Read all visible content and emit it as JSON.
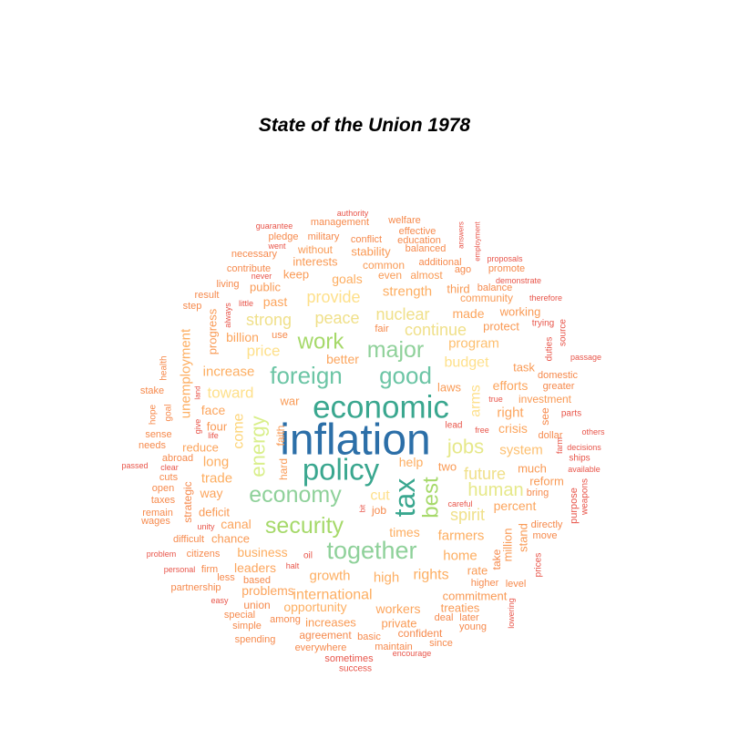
{
  "chart_data": {
    "type": "wordcloud",
    "title": "State of the Union 1978",
    "palette": [
      "#2c7bb6",
      "#3aa78f",
      "#6cc5a5",
      "#a6d96a",
      "#d9ef8b",
      "#fee08b",
      "#fdae61",
      "#f46d43",
      "#d73027"
    ],
    "words": [
      {
        "text": "inflation",
        "freq": 35,
        "color": "#2c6fa8"
      },
      {
        "text": "economic",
        "freq": 25,
        "color": "#3aa78f"
      },
      {
        "text": "policy",
        "freq": 22,
        "color": "#3aa78f"
      },
      {
        "text": "tax",
        "freq": 21,
        "color": "#3aa78f"
      },
      {
        "text": "foreign",
        "freq": 18,
        "color": "#6cc5a5"
      },
      {
        "text": "good",
        "freq": 18,
        "color": "#6cc5a5"
      },
      {
        "text": "together",
        "freq": 18,
        "color": "#8fd19a"
      },
      {
        "text": "major",
        "freq": 17,
        "color": "#8fd19a"
      },
      {
        "text": "economy",
        "freq": 17,
        "color": "#8fd19a"
      },
      {
        "text": "security",
        "freq": 17,
        "color": "#a6d96a"
      },
      {
        "text": "work",
        "freq": 16,
        "color": "#a6d96a"
      },
      {
        "text": "best",
        "freq": 16,
        "color": "#a6d96a"
      },
      {
        "text": "energy",
        "freq": 15,
        "color": "#d9ef8b"
      },
      {
        "text": "jobs",
        "freq": 15,
        "color": "#e6e88a"
      },
      {
        "text": "human",
        "freq": 14,
        "color": "#e6e88a"
      },
      {
        "text": "spirit",
        "freq": 12,
        "color": "#f0e08a"
      },
      {
        "text": "future",
        "freq": 12,
        "color": "#f0e08a"
      },
      {
        "text": "continue",
        "freq": 12,
        "color": "#f0e08a"
      },
      {
        "text": "nuclear",
        "freq": 12,
        "color": "#f0e08a"
      },
      {
        "text": "strong",
        "freq": 12,
        "color": "#f0e08a"
      },
      {
        "text": "peace",
        "freq": 12,
        "color": "#f0e08a"
      },
      {
        "text": "provide",
        "freq": 12,
        "color": "#fee08b"
      },
      {
        "text": "arms",
        "freq": 11,
        "color": "#fee08b"
      },
      {
        "text": "budget",
        "freq": 11,
        "color": "#fee08b"
      },
      {
        "text": "cut",
        "freq": 11,
        "color": "#fee08b"
      },
      {
        "text": "price",
        "freq": 11,
        "color": "#fee08b"
      },
      {
        "text": "toward",
        "freq": 11,
        "color": "#fee08b"
      },
      {
        "text": "come",
        "freq": 11,
        "color": "#fdd57a"
      },
      {
        "text": "program",
        "freq": 10,
        "color": "#fdbf6f"
      },
      {
        "text": "system",
        "freq": 10,
        "color": "#fdbf6f"
      },
      {
        "text": "international",
        "freq": 10,
        "color": "#fdae61"
      },
      {
        "text": "growth",
        "freq": 10,
        "color": "#fdae61"
      },
      {
        "text": "rights",
        "freq": 10,
        "color": "#fdae61"
      },
      {
        "text": "high",
        "freq": 10,
        "color": "#fdae61"
      },
      {
        "text": "opportunity",
        "freq": 10,
        "color": "#fdae61"
      },
      {
        "text": "business",
        "freq": 10,
        "color": "#fdae61"
      },
      {
        "text": "home",
        "freq": 10,
        "color": "#fdae61"
      },
      {
        "text": "farmers",
        "freq": 10,
        "color": "#fdae61"
      },
      {
        "text": "times",
        "freq": 10,
        "color": "#fdae61"
      },
      {
        "text": "help",
        "freq": 10,
        "color": "#fdae61"
      },
      {
        "text": "trade",
        "freq": 10,
        "color": "#fdae61"
      },
      {
        "text": "long",
        "freq": 10,
        "color": "#fdae61"
      },
      {
        "text": "increase",
        "freq": 10,
        "color": "#fdae61"
      },
      {
        "text": "unemployment",
        "freq": 10,
        "color": "#fdae61"
      },
      {
        "text": "strength",
        "freq": 10,
        "color": "#fdae61"
      },
      {
        "text": "goals",
        "freq": 10,
        "color": "#fdae61"
      },
      {
        "text": "leaders",
        "freq": 9,
        "color": "#fca55d"
      },
      {
        "text": "problems",
        "freq": 9,
        "color": "#fca55d"
      },
      {
        "text": "workers",
        "freq": 9,
        "color": "#fca55d"
      },
      {
        "text": "percent",
        "freq": 9,
        "color": "#fca55d"
      },
      {
        "text": "right",
        "freq": 9,
        "color": "#fca55d"
      },
      {
        "text": "efforts",
        "freq": 9,
        "color": "#fca55d"
      },
      {
        "text": "made",
        "freq": 9,
        "color": "#fca55d"
      },
      {
        "text": "better",
        "freq": 9,
        "color": "#fca55d"
      },
      {
        "text": "billion",
        "freq": 9,
        "color": "#fca55d"
      },
      {
        "text": "reduce",
        "freq": 9,
        "color": "#fca55d"
      },
      {
        "text": "face",
        "freq": 9,
        "color": "#fca55d"
      },
      {
        "text": "canal",
        "freq": 9,
        "color": "#fca55d"
      },
      {
        "text": "way",
        "freq": 9,
        "color": "#fca55d"
      },
      {
        "text": "past",
        "freq": 9,
        "color": "#fca55d"
      },
      {
        "text": "crisis",
        "freq": 9,
        "color": "#fca55d"
      },
      {
        "text": "commitment",
        "freq": 8,
        "color": "#f99a55"
      },
      {
        "text": "increases",
        "freq": 8,
        "color": "#f99a55"
      },
      {
        "text": "private",
        "freq": 8,
        "color": "#f99a55"
      },
      {
        "text": "treaties",
        "freq": 8,
        "color": "#f99a55"
      },
      {
        "text": "rate",
        "freq": 8,
        "color": "#f99a55"
      },
      {
        "text": "million",
        "freq": 8,
        "color": "#f99a55"
      },
      {
        "text": "stand",
        "freq": 8,
        "color": "#f99a55"
      },
      {
        "text": "much",
        "freq": 8,
        "color": "#f99a55"
      },
      {
        "text": "reform",
        "freq": 8,
        "color": "#f99a55"
      },
      {
        "text": "working",
        "freq": 8,
        "color": "#f99a55"
      },
      {
        "text": "protect",
        "freq": 8,
        "color": "#f99a55"
      },
      {
        "text": "task",
        "freq": 8,
        "color": "#f99a55"
      },
      {
        "text": "investment",
        "freq": 8,
        "color": "#f99a55"
      },
      {
        "text": "laws",
        "freq": 8,
        "color": "#f99a55"
      },
      {
        "text": "third",
        "freq": 8,
        "color": "#f99a55"
      },
      {
        "text": "community",
        "freq": 8,
        "color": "#f99a55"
      },
      {
        "text": "common",
        "freq": 8,
        "color": "#f99a55"
      },
      {
        "text": "even",
        "freq": 8,
        "color": "#f99a55"
      },
      {
        "text": "almost",
        "freq": 8,
        "color": "#f99a55"
      },
      {
        "text": "stability",
        "freq": 8,
        "color": "#f99a55"
      },
      {
        "text": "interests",
        "freq": 8,
        "color": "#f99a55"
      },
      {
        "text": "without",
        "freq": 8,
        "color": "#f99a55"
      },
      {
        "text": "keep",
        "freq": 8,
        "color": "#f99a55"
      },
      {
        "text": "public",
        "freq": 8,
        "color": "#f99a55"
      },
      {
        "text": "progress",
        "freq": 8,
        "color": "#f99a55"
      },
      {
        "text": "war",
        "freq": 8,
        "color": "#f99a55"
      },
      {
        "text": "four",
        "freq": 8,
        "color": "#f99a55"
      },
      {
        "text": "faith",
        "freq": 8,
        "color": "#f99a55"
      },
      {
        "text": "hard",
        "freq": 8,
        "color": "#f99a55"
      },
      {
        "text": "deficit",
        "freq": 8,
        "color": "#f99a55"
      },
      {
        "text": "chance",
        "freq": 8,
        "color": "#f99a55"
      },
      {
        "text": "two",
        "freq": 8,
        "color": "#f99a55"
      },
      {
        "text": "strategic",
        "freq": 7,
        "color": "#f68a4d"
      },
      {
        "text": "union",
        "freq": 7,
        "color": "#f68a4d"
      },
      {
        "text": "agreement",
        "freq": 7,
        "color": "#f68a4d"
      },
      {
        "text": "basic",
        "freq": 7,
        "color": "#f68a4d"
      },
      {
        "text": "confident",
        "freq": 7,
        "color": "#f68a4d"
      },
      {
        "text": "maintain",
        "freq": 7,
        "color": "#f68a4d"
      },
      {
        "text": "since",
        "freq": 7,
        "color": "#f68a4d"
      },
      {
        "text": "deal",
        "freq": 7,
        "color": "#f68a4d"
      },
      {
        "text": "later",
        "freq": 7,
        "color": "#f68a4d"
      },
      {
        "text": "young",
        "freq": 7,
        "color": "#f68a4d"
      },
      {
        "text": "higher",
        "freq": 7,
        "color": "#f68a4d"
      },
      {
        "text": "level",
        "freq": 7,
        "color": "#f68a4d"
      },
      {
        "text": "take",
        "freq": 7,
        "color": "#f68a4d"
      },
      {
        "text": "move",
        "freq": 7,
        "color": "#f68a4d"
      },
      {
        "text": "directly",
        "freq": 7,
        "color": "#f68a4d"
      },
      {
        "text": "bring",
        "freq": 7,
        "color": "#f68a4d"
      },
      {
        "text": "see",
        "freq": 7,
        "color": "#f68a4d"
      },
      {
        "text": "dollar",
        "freq": 7,
        "color": "#f68a4d"
      },
      {
        "text": "greater",
        "freq": 7,
        "color": "#f68a4d"
      },
      {
        "text": "domestic",
        "freq": 7,
        "color": "#f68a4d"
      },
      {
        "text": "everywhere",
        "freq": 7,
        "color": "#f68a4d"
      },
      {
        "text": "among",
        "freq": 7,
        "color": "#f68a4d"
      },
      {
        "text": "special",
        "freq": 7,
        "color": "#f68a4d"
      },
      {
        "text": "simple",
        "freq": 7,
        "color": "#f68a4d"
      },
      {
        "text": "spending",
        "freq": 7,
        "color": "#f68a4d"
      },
      {
        "text": "partnership",
        "freq": 7,
        "color": "#f68a4d"
      },
      {
        "text": "citizens",
        "freq": 7,
        "color": "#f68a4d"
      },
      {
        "text": "based",
        "freq": 7,
        "color": "#f68a4d"
      },
      {
        "text": "less",
        "freq": 7,
        "color": "#f68a4d"
      },
      {
        "text": "firm",
        "freq": 7,
        "color": "#f68a4d"
      },
      {
        "text": "difficult",
        "freq": 7,
        "color": "#f68a4d"
      },
      {
        "text": "taxes",
        "freq": 7,
        "color": "#f68a4d"
      },
      {
        "text": "open",
        "freq": 7,
        "color": "#f68a4d"
      },
      {
        "text": "remain",
        "freq": 7,
        "color": "#f68a4d"
      },
      {
        "text": "wages",
        "freq": 7,
        "color": "#f68a4d"
      },
      {
        "text": "cuts",
        "freq": 7,
        "color": "#f68a4d"
      },
      {
        "text": "abroad",
        "freq": 7,
        "color": "#f68a4d"
      },
      {
        "text": "needs",
        "freq": 7,
        "color": "#f68a4d"
      },
      {
        "text": "sense",
        "freq": 7,
        "color": "#f68a4d"
      },
      {
        "text": "hope",
        "freq": 7,
        "color": "#f68a4d"
      },
      {
        "text": "goal",
        "freq": 7,
        "color": "#f68a4d"
      },
      {
        "text": "stake",
        "freq": 7,
        "color": "#f68a4d"
      },
      {
        "text": "health",
        "freq": 7,
        "color": "#f68a4d"
      },
      {
        "text": "step",
        "freq": 7,
        "color": "#f68a4d"
      },
      {
        "text": "result",
        "freq": 7,
        "color": "#f68a4d"
      },
      {
        "text": "living",
        "freq": 7,
        "color": "#f68a4d"
      },
      {
        "text": "contribute",
        "freq": 7,
        "color": "#f68a4d"
      },
      {
        "text": "necessary",
        "freq": 7,
        "color": "#f68a4d"
      },
      {
        "text": "pledge",
        "freq": 7,
        "color": "#f68a4d"
      },
      {
        "text": "military",
        "freq": 7,
        "color": "#f68a4d"
      },
      {
        "text": "conflict",
        "freq": 7,
        "color": "#f68a4d"
      },
      {
        "text": "management",
        "freq": 7,
        "color": "#f68a4d"
      },
      {
        "text": "welfare",
        "freq": 7,
        "color": "#f68a4d"
      },
      {
        "text": "effective",
        "freq": 7,
        "color": "#f68a4d"
      },
      {
        "text": "education",
        "freq": 7,
        "color": "#f68a4d"
      },
      {
        "text": "balanced",
        "freq": 7,
        "color": "#f68a4d"
      },
      {
        "text": "additional",
        "freq": 7,
        "color": "#f68a4d"
      },
      {
        "text": "ago",
        "freq": 7,
        "color": "#f68a4d"
      },
      {
        "text": "promote",
        "freq": 7,
        "color": "#f68a4d"
      },
      {
        "text": "balance",
        "freq": 7,
        "color": "#f68a4d"
      },
      {
        "text": "job",
        "freq": 7,
        "color": "#f68a4d"
      },
      {
        "text": "fair",
        "freq": 7,
        "color": "#f68a4d"
      },
      {
        "text": "use",
        "freq": 7,
        "color": "#f68a4d"
      },
      {
        "text": "prices",
        "freq": 6,
        "color": "#e8554a"
      },
      {
        "text": "purpose",
        "freq": 6,
        "color": "#e8554a"
      },
      {
        "text": "weapons",
        "freq": 6,
        "color": "#e8554a"
      },
      {
        "text": "lowering",
        "freq": 6,
        "color": "#e8554a"
      },
      {
        "text": "sometimes",
        "freq": 6,
        "color": "#e8554a"
      },
      {
        "text": "success",
        "freq": 6,
        "color": "#e8554a"
      },
      {
        "text": "encourage",
        "freq": 6,
        "color": "#e8554a"
      },
      {
        "text": "easy",
        "freq": 6,
        "color": "#e8554a"
      },
      {
        "text": "personal",
        "freq": 6,
        "color": "#e8554a"
      },
      {
        "text": "problem",
        "freq": 6,
        "color": "#e8554a"
      },
      {
        "text": "halt",
        "freq": 6,
        "color": "#e8554a"
      },
      {
        "text": "oil",
        "freq": 6,
        "color": "#e8554a"
      },
      {
        "text": "unity",
        "freq": 6,
        "color": "#e8554a"
      },
      {
        "text": "bit",
        "freq": 6,
        "color": "#e8554a"
      },
      {
        "text": "careful",
        "freq": 6,
        "color": "#e8554a"
      },
      {
        "text": "passed",
        "freq": 6,
        "color": "#e8554a"
      },
      {
        "text": "clear",
        "freq": 6,
        "color": "#e8554a"
      },
      {
        "text": "life",
        "freq": 6,
        "color": "#e8554a"
      },
      {
        "text": "give",
        "freq": 6,
        "color": "#e8554a"
      },
      {
        "text": "land",
        "freq": 6,
        "color": "#e8554a"
      },
      {
        "text": "lead",
        "freq": 6,
        "color": "#e8554a"
      },
      {
        "text": "free",
        "freq": 6,
        "color": "#e8554a"
      },
      {
        "text": "true",
        "freq": 6,
        "color": "#e8554a"
      },
      {
        "text": "always",
        "freq": 6,
        "color": "#e8554a"
      },
      {
        "text": "little",
        "freq": 6,
        "color": "#e8554a"
      },
      {
        "text": "never",
        "freq": 6,
        "color": "#e8554a"
      },
      {
        "text": "went",
        "freq": 6,
        "color": "#e8554a"
      },
      {
        "text": "guarantee",
        "freq": 6,
        "color": "#e8554a"
      },
      {
        "text": "authority",
        "freq": 6,
        "color": "#e8554a"
      },
      {
        "text": "answers",
        "freq": 6,
        "color": "#e8554a"
      },
      {
        "text": "employment",
        "freq": 6,
        "color": "#e8554a"
      },
      {
        "text": "proposals",
        "freq": 6,
        "color": "#e8554a"
      },
      {
        "text": "demonstrate",
        "freq": 6,
        "color": "#e8554a"
      },
      {
        "text": "therefore",
        "freq": 6,
        "color": "#e8554a"
      },
      {
        "text": "trying",
        "freq": 6,
        "color": "#e8554a"
      },
      {
        "text": "source",
        "freq": 6,
        "color": "#e8554a"
      },
      {
        "text": "duties",
        "freq": 6,
        "color": "#e8554a"
      },
      {
        "text": "passage",
        "freq": 6,
        "color": "#e8554a"
      },
      {
        "text": "farm",
        "freq": 6,
        "color": "#e8554a"
      },
      {
        "text": "parts",
        "freq": 6,
        "color": "#e8554a"
      },
      {
        "text": "others",
        "freq": 6,
        "color": "#e8554a"
      },
      {
        "text": "decisions",
        "freq": 6,
        "color": "#e8554a"
      },
      {
        "text": "ships",
        "freq": 6,
        "color": "#e8554a"
      },
      {
        "text": "available",
        "freq": 6,
        "color": "#e8554a"
      }
    ]
  }
}
